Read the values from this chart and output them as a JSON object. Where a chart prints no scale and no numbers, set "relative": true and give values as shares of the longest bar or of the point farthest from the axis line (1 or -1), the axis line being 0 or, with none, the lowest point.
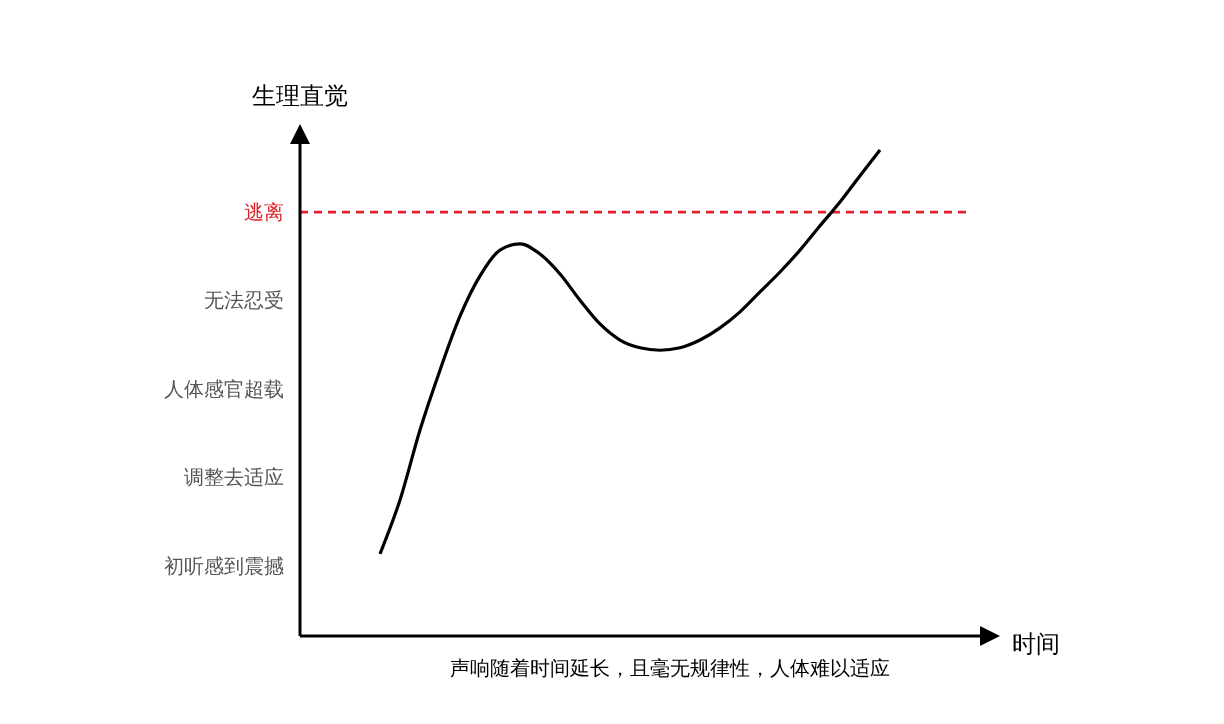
{
  "chart_data": {
    "type": "line",
    "relative": true,
    "ylabel": "生理直觉",
    "xlabel": "时间",
    "annotations": [
      "初听感到震撼",
      "调整去适应",
      "人体感官超载",
      "无法忍受",
      "声响随着时间延长，且毫无规律性，人体难以适应"
    ],
    "categories": [
      null,
      null,
      null,
      null,
      null,
      null,
      null,
      null,
      null,
      null,
      null,
      null,
      null,
      null,
      null,
      null,
      null,
      null,
      null,
      null,
      null,
      null,
      null,
      null,
      null,
      null,
      null,
      null,
      null,
      null,
      null
    ],
    "series": [
      {
        "color": "#000000",
        "values": [
          0.169,
          0.28,
          0.424,
          0.547,
          0.658,
          0.741,
          0.794,
          0.807,
          0.786,
          0.745,
          0.691,
          0.642,
          0.609,
          0.593,
          0.588,
          0.593,
          0.609,
          0.634,
          0.667,
          0.708,
          0.749,
          0.794,
          0.844,
          0.893,
          0.947,
          1,
          null,
          null,
          null,
          null,
          null
        ]
      }
    ],
    "ref_lines": [
      {
        "axis": "y",
        "value": 0.872,
        "label": "逃离",
        "color": "#e0202a",
        "line_style": "dashed"
      }
    ],
    "marker": "none",
    "line_style": "solid"
  }
}
